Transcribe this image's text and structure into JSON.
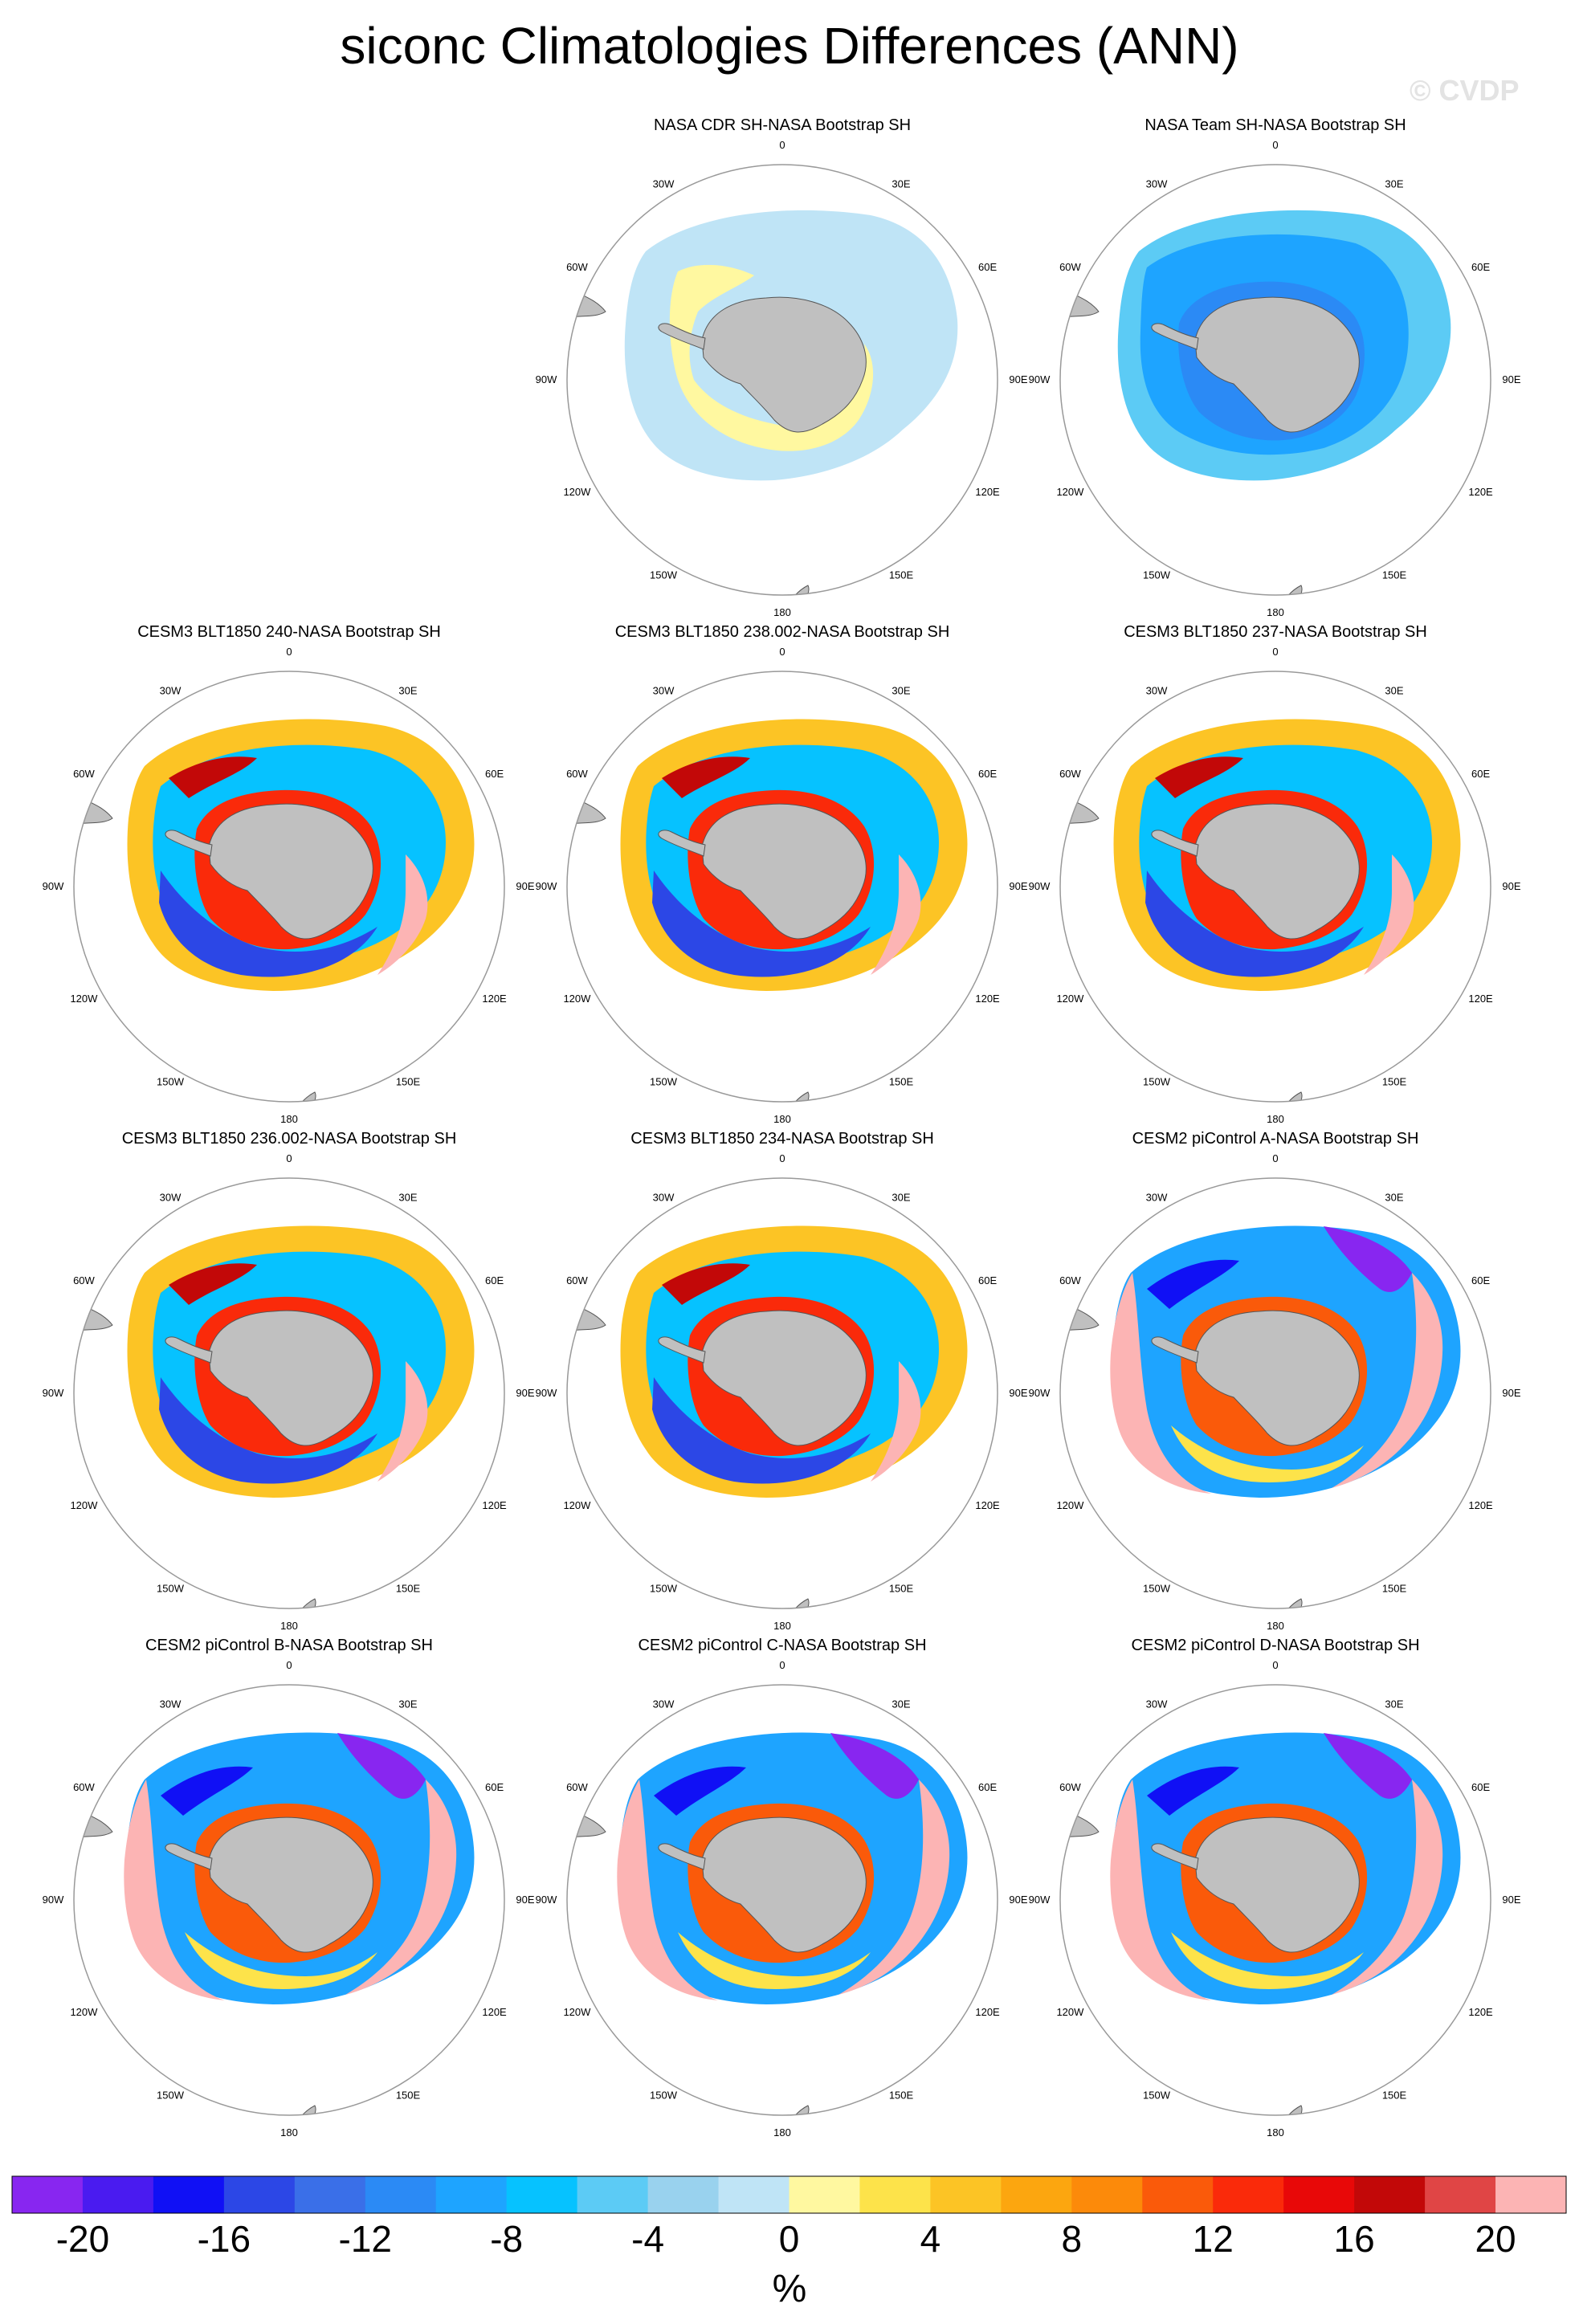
{
  "title": "siconc Climatologies Differences (ANN)",
  "watermark": "© CVDP",
  "lon_labels": [
    "0",
    "30E",
    "60E",
    "90E",
    "120E",
    "150E",
    "180",
    "150W",
    "120W",
    "90W",
    "60W",
    "30W"
  ],
  "colors": {
    "land": "#c0c0c0",
    "land_outline": "#555555",
    "circle": "#999999"
  },
  "chart_data": {
    "type": "heatmap",
    "projection": "south-polar-stereographic",
    "unit_label": "%",
    "colorbar": {
      "levels": [
        -20,
        -18,
        -16,
        -14,
        -12,
        -10,
        -8,
        -6,
        -4,
        -2,
        0,
        2,
        4,
        6,
        8,
        10,
        12,
        14,
        16,
        18,
        20
      ],
      "tick_labels": [
        "-20",
        "-16",
        "-12",
        "-8",
        "-4",
        "0",
        "4",
        "8",
        "12",
        "16",
        "20"
      ],
      "colors": [
        "#8826f0",
        "#4a1bf0",
        "#1010f5",
        "#2c47e6",
        "#3a6fe8",
        "#2b8af5",
        "#1ea4ff",
        "#06c2ff",
        "#5ccbf5",
        "#99d2ee",
        "#bfe4f6",
        "#fff8a0",
        "#fde34a",
        "#fcc425",
        "#fca60f",
        "#fc8a0a",
        "#fa5a0a",
        "#fa2a0a",
        "#e80808",
        "#c20808",
        "#e04545",
        "#fcb4b4"
      ]
    },
    "panels": [
      {
        "title": "NASA CDR SH-NASA Bootstrap SH",
        "pattern": "cdr"
      },
      {
        "title": "NASA Team SH-NASA Bootstrap SH",
        "pattern": "team"
      },
      {
        "title": "CESM3 BLT1850 240-NASA Bootstrap SH",
        "pattern": "c3"
      },
      {
        "title": "CESM3 BLT1850 238.002-NASA Bootstrap SH",
        "pattern": "c3"
      },
      {
        "title": "CESM3 BLT1850 237-NASA Bootstrap SH",
        "pattern": "c3"
      },
      {
        "title": "CESM3 BLT1850 236.002-NASA Bootstrap SH",
        "pattern": "c3"
      },
      {
        "title": "CESM3 BLT1850 234-NASA Bootstrap SH",
        "pattern": "c3"
      },
      {
        "title": "CESM2 piControl A-NASA Bootstrap SH",
        "pattern": "c2"
      },
      {
        "title": "CESM2 piControl B-NASA Bootstrap SH",
        "pattern": "c2"
      },
      {
        "title": "CESM2 piControl C-NASA Bootstrap SH",
        "pattern": "c2"
      },
      {
        "title": "CESM2 piControl D-NASA Bootstrap SH",
        "pattern": "c2"
      }
    ]
  }
}
